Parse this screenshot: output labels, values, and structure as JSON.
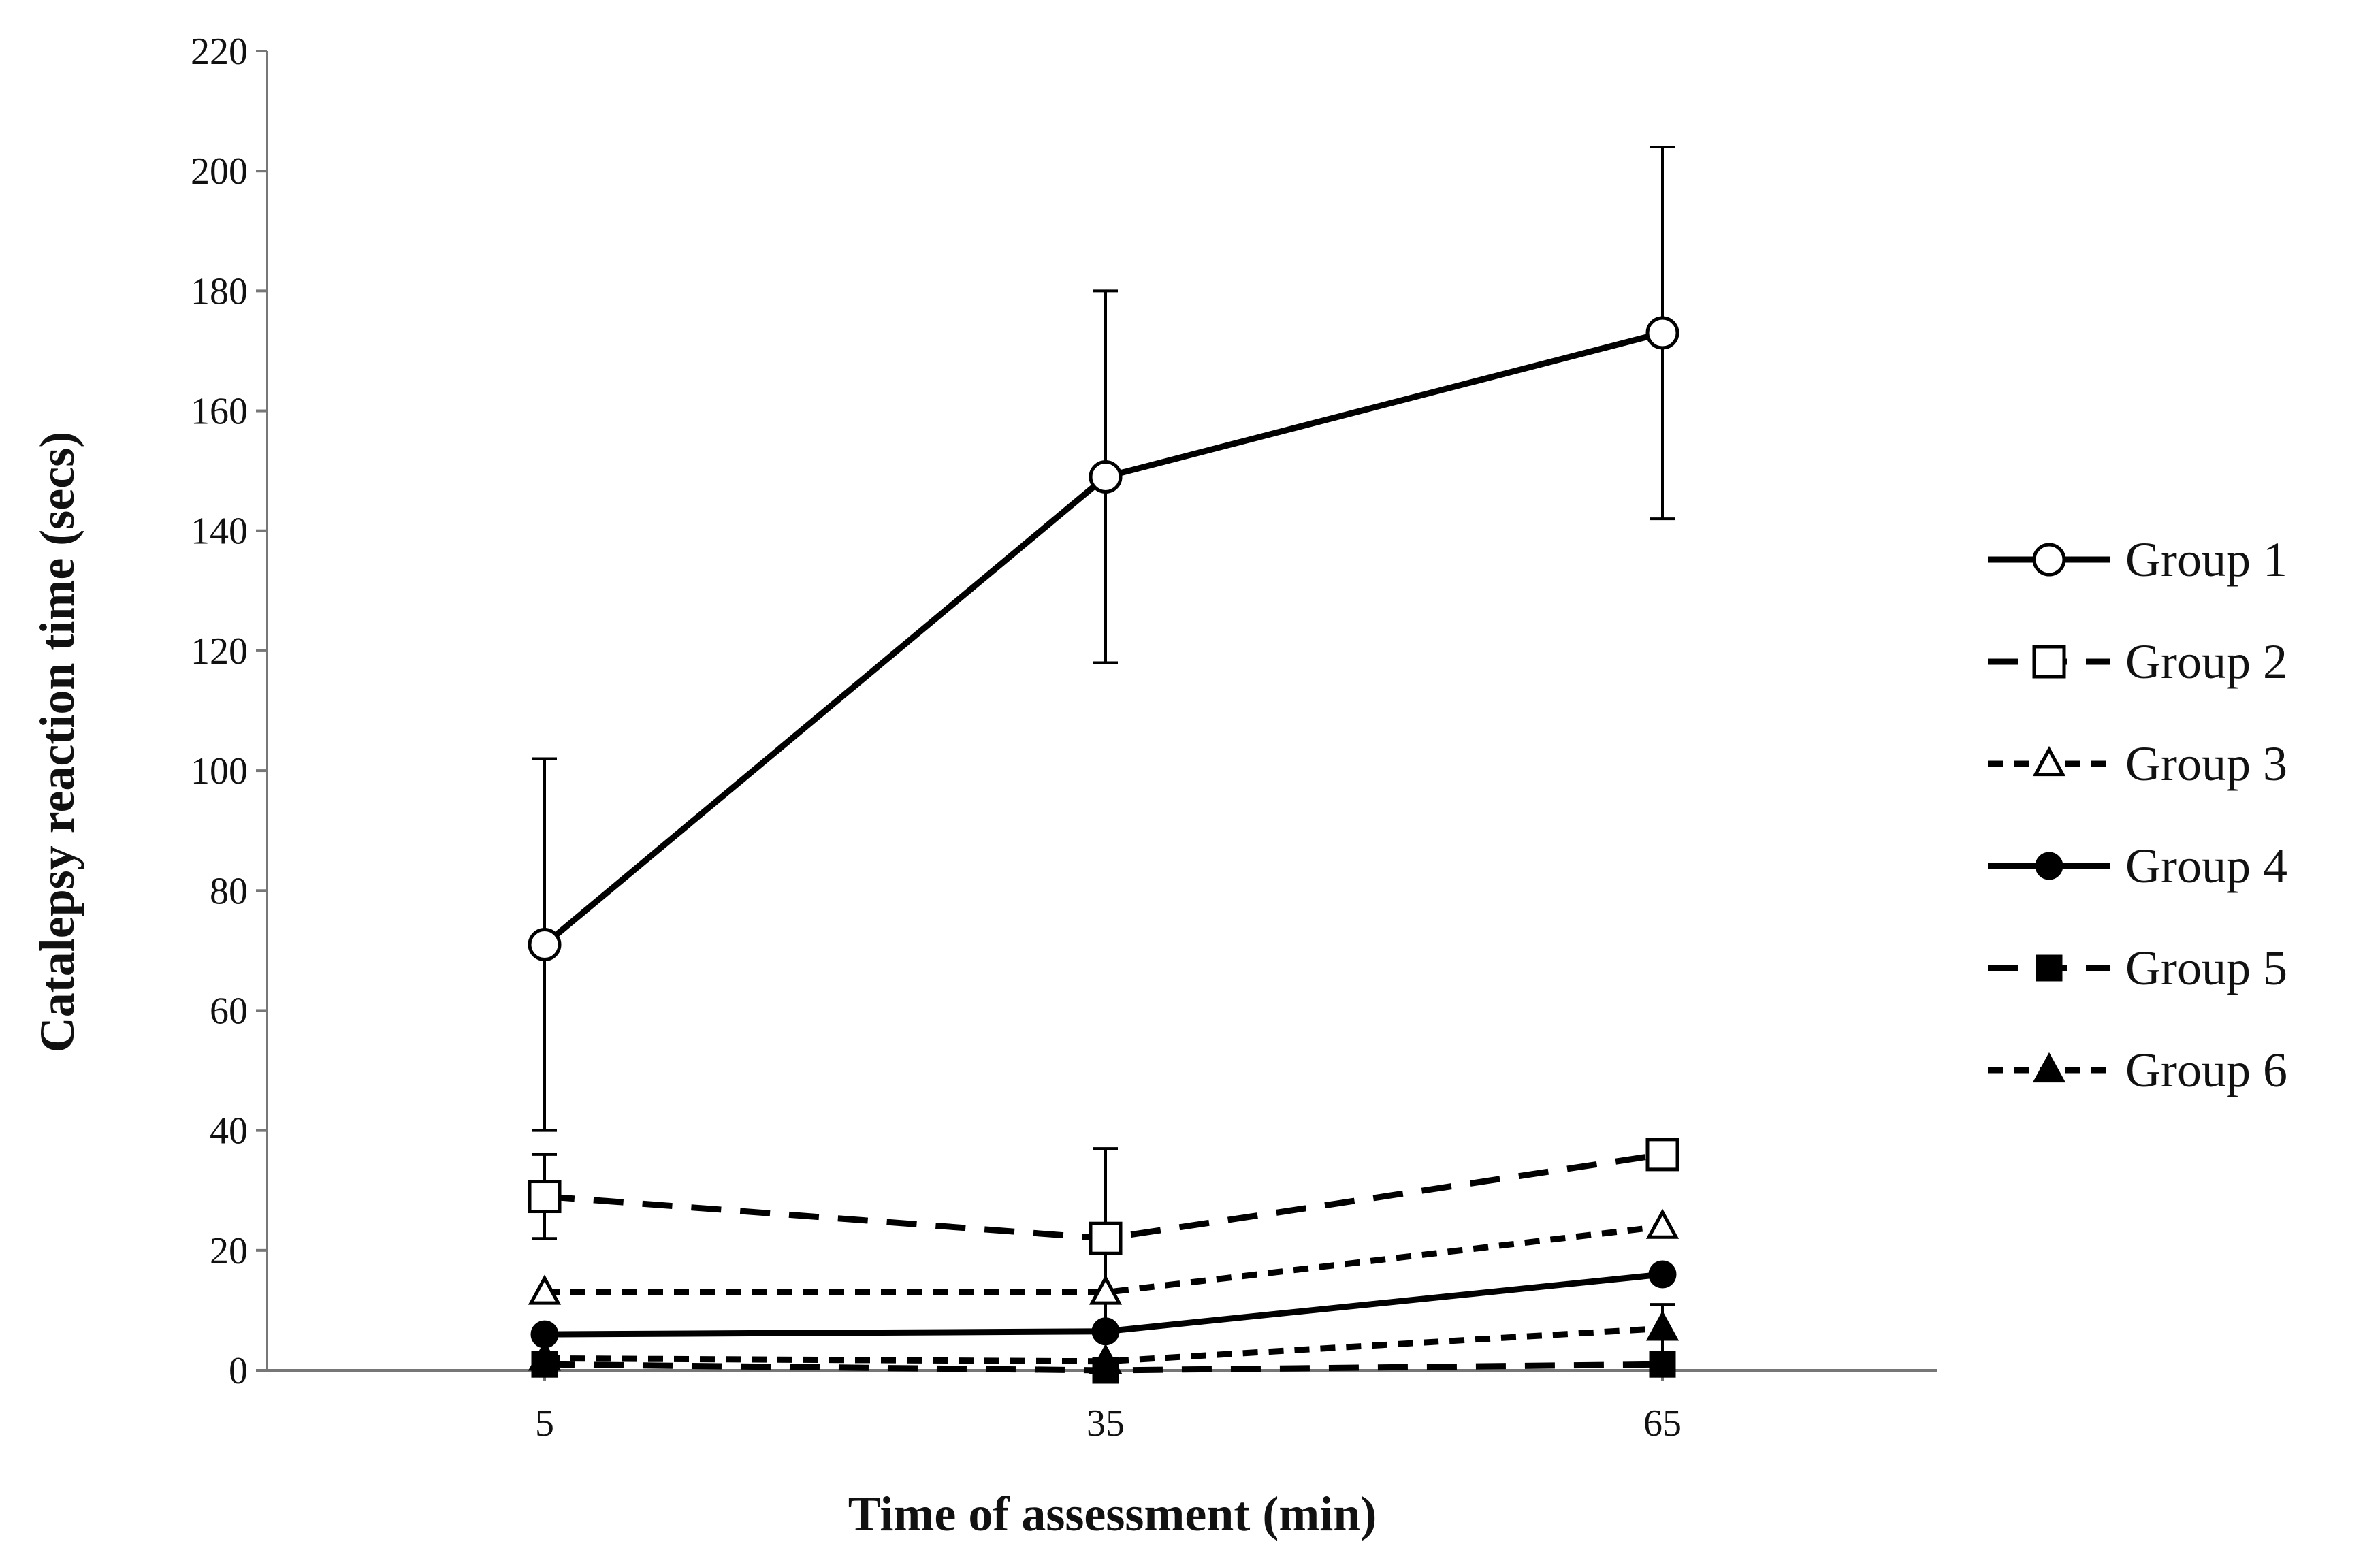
{
  "chart_data": {
    "type": "line",
    "title": "",
    "xlabel": "Time of assessment (min)",
    "ylabel": "Catalepsy reaction time (secs)",
    "x": [
      5,
      35,
      65
    ],
    "x_tick_labels": [
      "5",
      "35",
      "65"
    ],
    "ylim": [
      0,
      220
    ],
    "y_ticks": [
      0,
      20,
      40,
      60,
      80,
      100,
      120,
      140,
      160,
      180,
      200,
      220
    ],
    "grid": false,
    "legend_position": "right",
    "series": [
      {
        "name": "Group 1",
        "marker": "circle-open",
        "line_style": "solid",
        "values": [
          71,
          149,
          173
        ],
        "error": [
          31,
          31,
          31
        ]
      },
      {
        "name": "Group 2",
        "marker": "square-open",
        "line_style": "dashed",
        "values": [
          29,
          22,
          36
        ],
        "error": [
          7,
          15,
          0
        ]
      },
      {
        "name": "Group 3",
        "marker": "triangle-open",
        "line_style": "dotted",
        "values": [
          13,
          13,
          24
        ],
        "error": [
          0,
          0,
          0
        ]
      },
      {
        "name": "Group 4",
        "marker": "circle-filled",
        "line_style": "solid",
        "values": [
          6,
          6.5,
          16
        ],
        "error": [
          0,
          0,
          0
        ]
      },
      {
        "name": "Group 5",
        "marker": "square-filled",
        "line_style": "dashed",
        "values": [
          1,
          0,
          1
        ],
        "error": [
          0,
          0,
          0
        ]
      },
      {
        "name": "Group 6",
        "marker": "triangle-filled",
        "line_style": "dotted",
        "values": [
          2,
          1.5,
          7
        ],
        "error": [
          0,
          0,
          4
        ]
      }
    ]
  }
}
